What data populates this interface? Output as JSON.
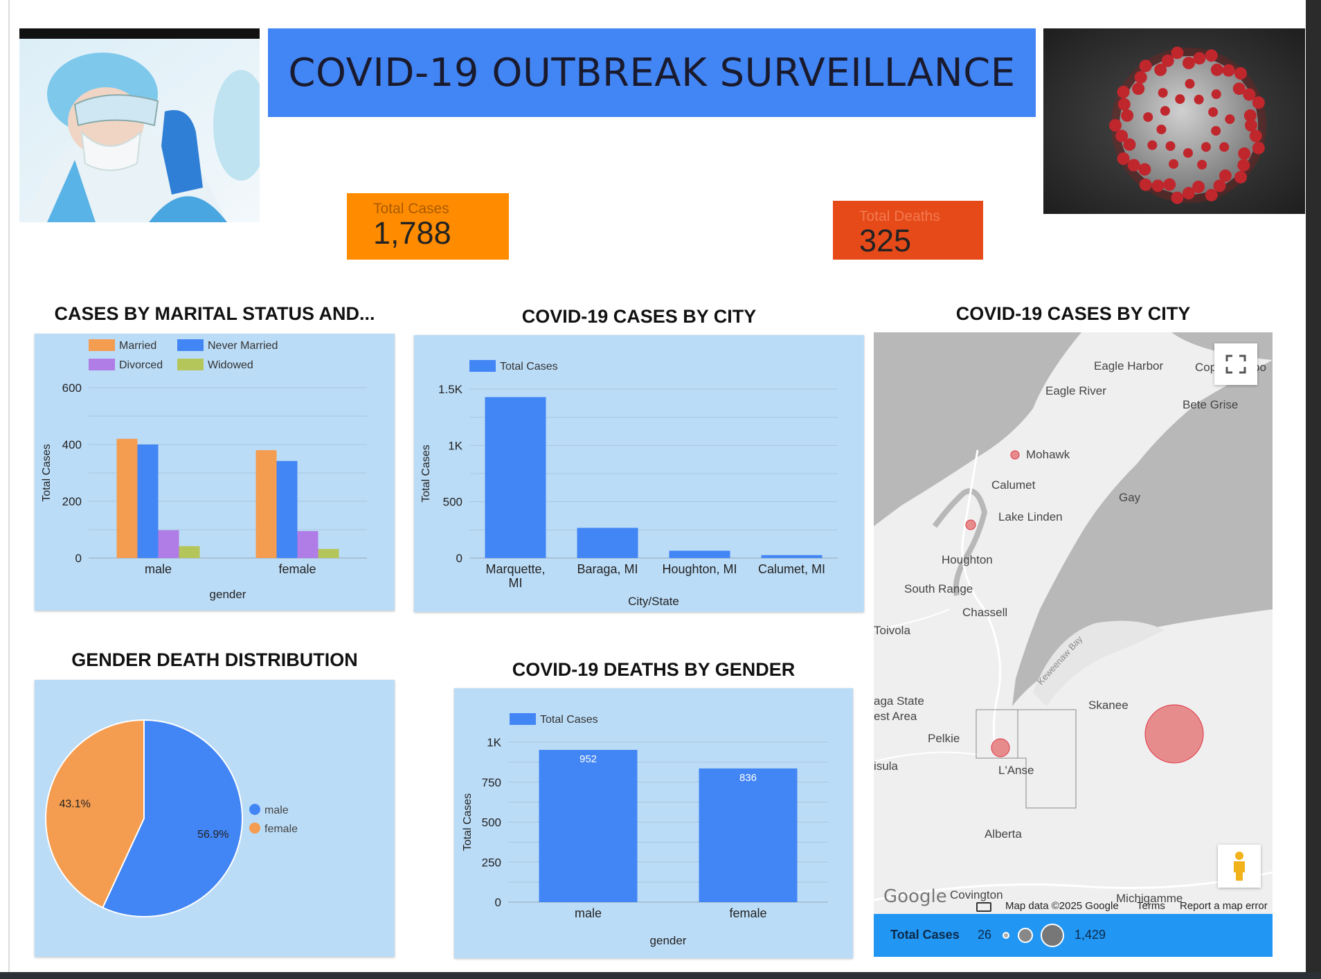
{
  "header": {
    "title": "COVID-19 OUTBREAK SURVEILLANCE"
  },
  "scorecards": {
    "cases": {
      "label": "Total Cases",
      "value": "1,788",
      "color": "#ff8c00"
    },
    "deaths": {
      "label": "Total Deaths",
      "value": "325",
      "color": "#e64a19"
    }
  },
  "colors": {
    "primary": "#4285f4",
    "panel": "#bbdcf7",
    "married": "#f49c4f",
    "never_married": "#4285f4",
    "divorced": "#b07ce6",
    "widowed": "#b4c55a",
    "female": "#f49c4f",
    "map_bubble": "#e57373",
    "map_footer": "#2196f3"
  },
  "marital_chart": {
    "section_title": "CASES BY MARITAL STATUS AND...",
    "chart_data": {
      "type": "bar",
      "categories": [
        "male",
        "female"
      ],
      "series": [
        {
          "name": "Married",
          "values": [
            420,
            380
          ]
        },
        {
          "name": "Never Married",
          "values": [
            400,
            342
          ]
        },
        {
          "name": "Divorced",
          "values": [
            98,
            95
          ]
        },
        {
          "name": "Widowed",
          "values": [
            42,
            32
          ]
        }
      ],
      "xlabel": "gender",
      "ylabel": "Total Cases",
      "ylim": [
        0,
        600
      ],
      "yticks": [
        "0",
        "200",
        "400",
        "600"
      ],
      "grid": true,
      "legend": "top-left"
    }
  },
  "city_chart": {
    "section_title": "COVID-19 CASES BY CITY",
    "chart_data": {
      "type": "bar",
      "categories": [
        "Marquette, MI",
        "Baraga, MI",
        "Houghton, MI",
        "Calumet, MI"
      ],
      "category_lines": [
        [
          "Marquette,",
          "MI"
        ],
        [
          "Baraga, MI"
        ],
        [
          "Houghton, MI"
        ],
        [
          "Calumet, MI"
        ]
      ],
      "series": [
        {
          "name": "Total Cases",
          "values": [
            1429,
            268,
            65,
            26
          ]
        }
      ],
      "xlabel": "City/State",
      "ylabel": "Total Cases",
      "ylim": [
        0,
        1500
      ],
      "yticks": [
        "0",
        "500",
        "1K",
        "1.5K"
      ],
      "grid": true,
      "legend": "top-left"
    }
  },
  "gender_pie": {
    "section_title": "GENDER DEATH DISTRIBUTION",
    "chart_data": {
      "type": "pie",
      "slices": [
        {
          "label": "male",
          "value": 56.9,
          "display": "56.9%"
        },
        {
          "label": "female",
          "value": 43.1,
          "display": "43.1%"
        }
      ],
      "legend": "right"
    }
  },
  "deaths_gender_chart": {
    "section_title": "COVID-19 DEATHS BY GENDER",
    "chart_data": {
      "type": "bar",
      "categories": [
        "male",
        "female"
      ],
      "series": [
        {
          "name": "Total Cases",
          "values": [
            952,
            836
          ]
        }
      ],
      "data_labels": [
        "952",
        "836"
      ],
      "xlabel": "gender",
      "ylabel": "Total Cases",
      "ylim": [
        0,
        1000
      ],
      "yticks": [
        "0",
        "250",
        "500",
        "750",
        "1K"
      ],
      "grid": true,
      "legend": "top-left"
    }
  },
  "map": {
    "section_title": "COVID-19 CASES BY CITY",
    "places": [
      "Eagle Harbor",
      "Eagle River",
      "Bete Grise",
      "Mohawk",
      "Calumet",
      "Gay",
      "Lake Linden",
      "Houghton",
      "South Range",
      "Chassell",
      "Toivola",
      "Keweenaw Bay",
      "aga State",
      "est Area",
      "Skanee",
      "Pelkie",
      "isula",
      "L'Anse",
      "Alberta",
      "Covington",
      "Michigamme",
      "Cop",
      "bo"
    ],
    "attribution": {
      "google": "Google",
      "data": "Map data ©2025 Google",
      "terms": "Terms",
      "report": "Report a map error"
    },
    "legend": {
      "title": "Total Cases",
      "min": "26",
      "max": "1,429"
    },
    "icons": [
      "fullscreen-icon",
      "pegman-icon",
      "keyboard-icon"
    ]
  }
}
